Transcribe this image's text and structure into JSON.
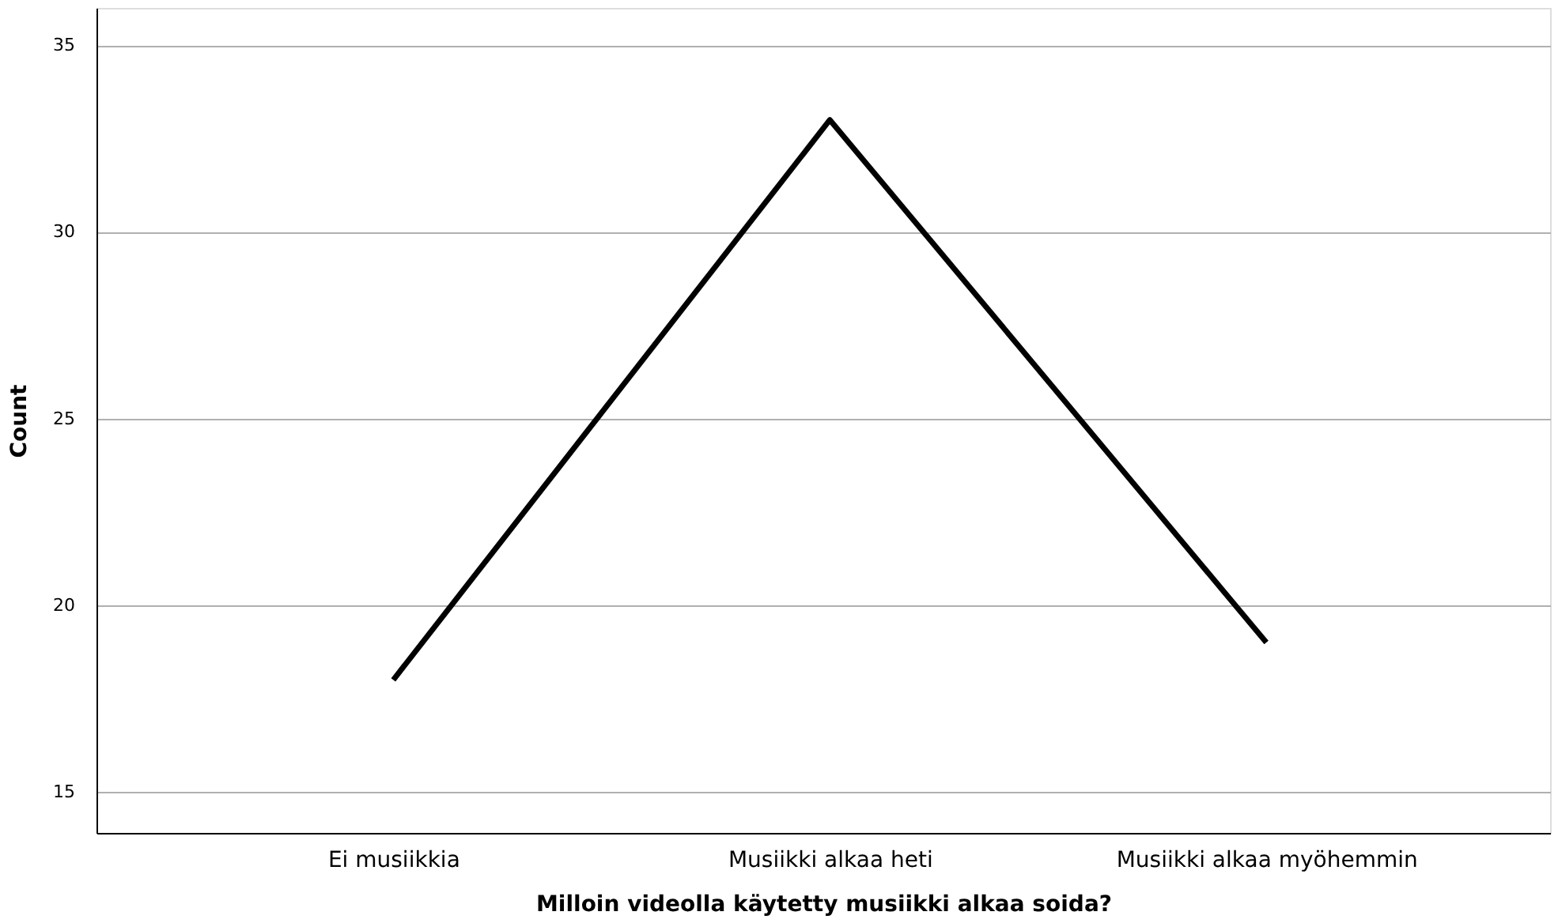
{
  "chart_data": {
    "type": "line",
    "xlabel": "Milloin videolla käytetty musiikki alkaa soida?",
    "ylabel": "Count",
    "categories": [
      "Ei musiikkia",
      "Musiikki alkaa heti",
      "Musiikki alkaa myöhemmin"
    ],
    "series": [
      {
        "color": "#000000",
        "values": [
          18,
          33,
          19
        ]
      }
    ],
    "ylim": [
      13.9,
      36
    ],
    "yticks": [
      15,
      20,
      25,
      30,
      35
    ],
    "grid": "y",
    "legend": false,
    "marker": "none",
    "line_style": "solid"
  }
}
